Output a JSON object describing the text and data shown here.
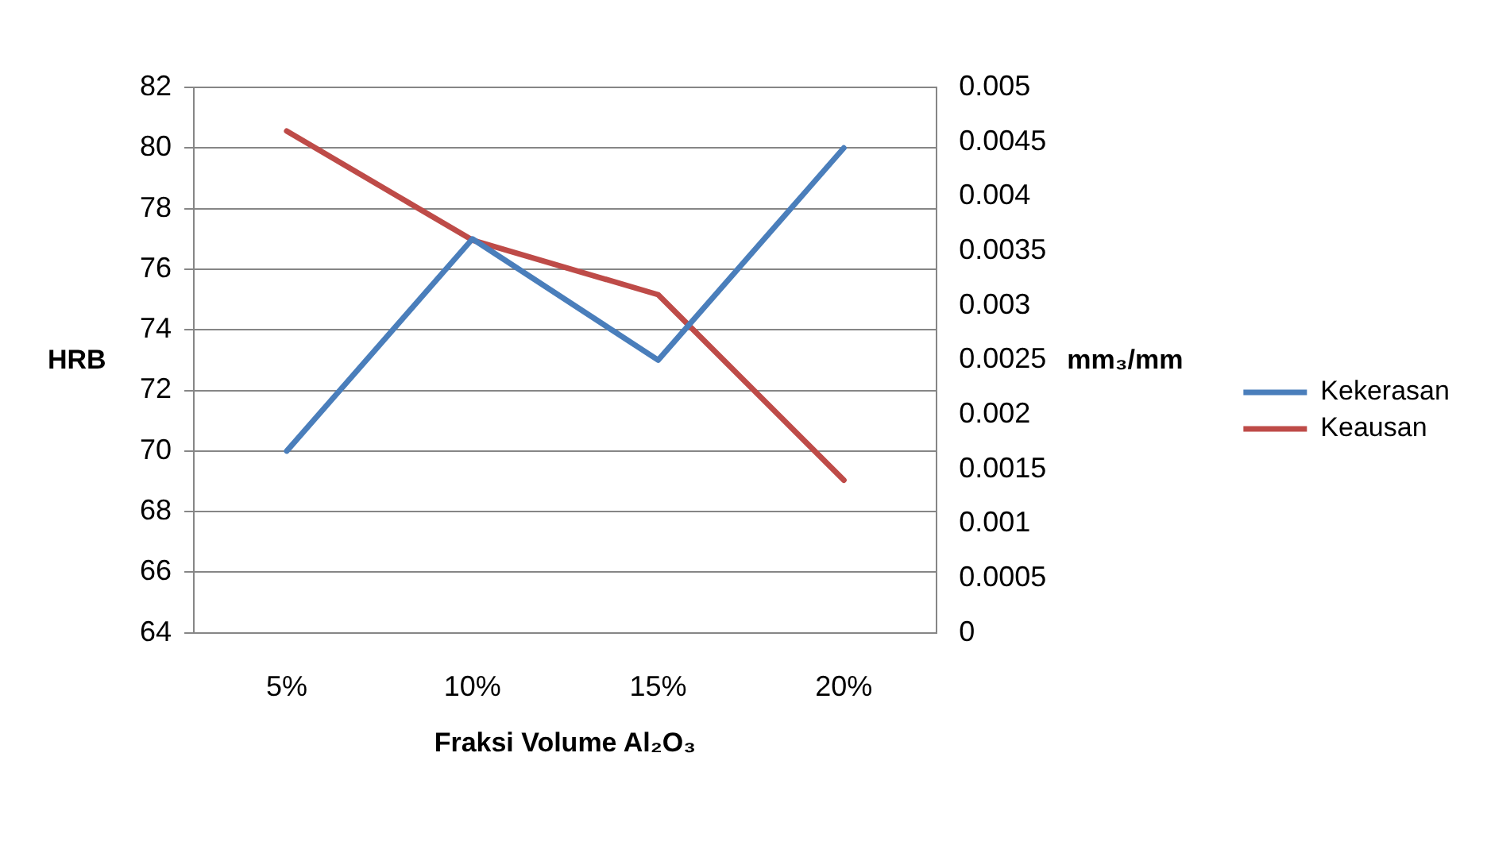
{
  "chart_data": {
    "type": "line",
    "xlabel": "Fraksi Volume Al₂O₃",
    "ylabel": "HRB",
    "y2label": "mm₃/mm",
    "categories": [
      "5%",
      "10%",
      "15%",
      "20%"
    ],
    "series": [
      {
        "name": "Kekerasan",
        "color": "#4a7ebb",
        "values": [
          70,
          77,
          73,
          80
        ]
      },
      {
        "name": "Keausan",
        "color": "#be4b48",
        "axis": "y2",
        "values": [
          0.0046,
          0.0036,
          0.0031,
          0.0014
        ]
      }
    ],
    "ylim": [
      64,
      82
    ],
    "yticks": [
      64,
      66,
      68,
      70,
      72,
      74,
      76,
      78,
      80,
      82
    ],
    "y2lim": [
      0,
      0.005
    ],
    "y2ticks": [
      0,
      0.0005,
      0.001,
      0.0015,
      0.002,
      0.0025,
      0.003,
      0.0035,
      0.004,
      0.0045,
      0.005
    ],
    "grid": "y",
    "legend": "right",
    "marker": "none",
    "line_style": "solid"
  }
}
